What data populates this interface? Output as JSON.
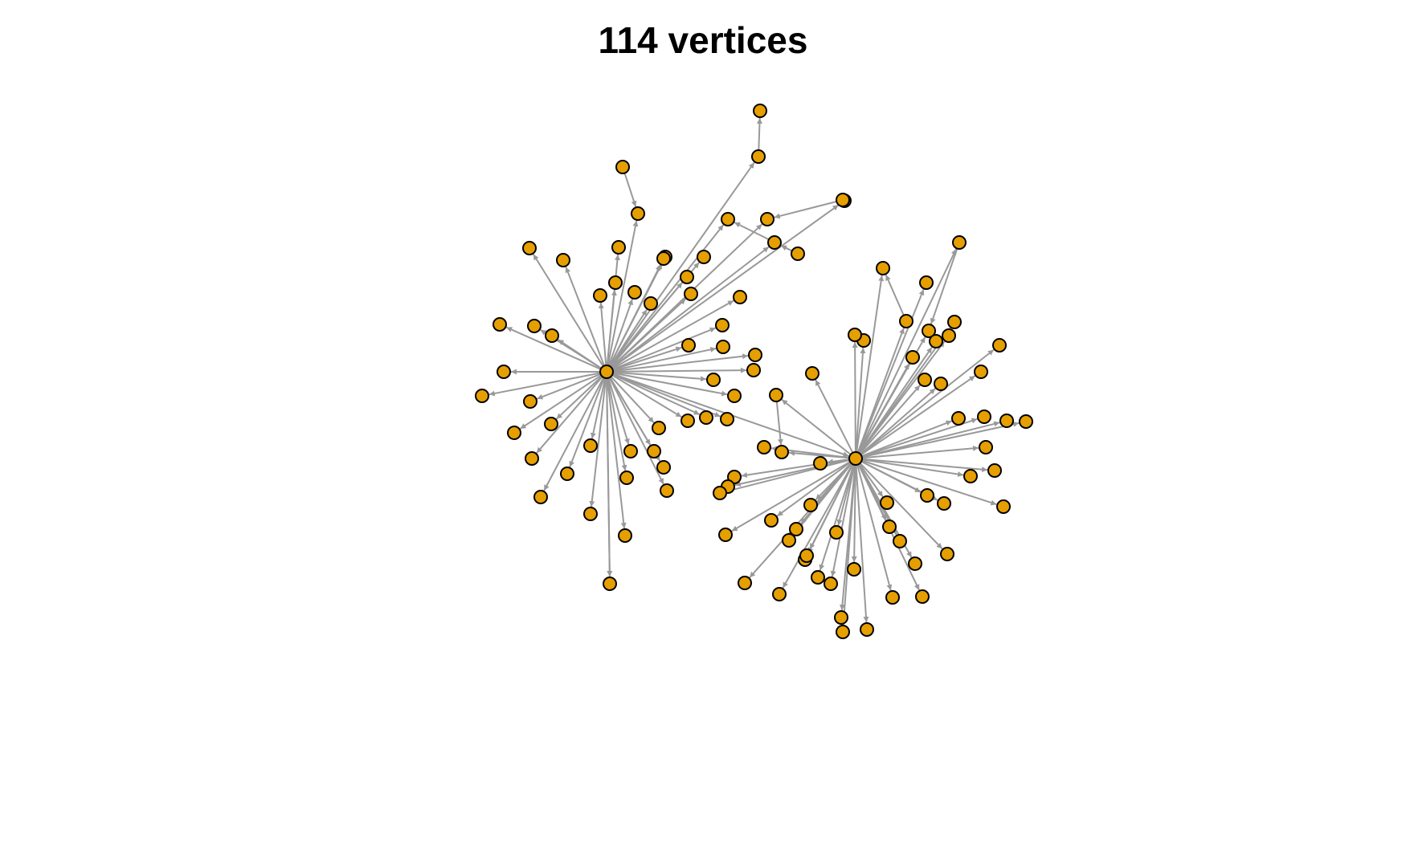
{
  "title": "114 vertices",
  "colors": {
    "node_fill": "#E69F00",
    "node_stroke": "#000000",
    "edge": "#999999",
    "background": "#FFFFFF"
  },
  "graph": {
    "directed": true,
    "vertex_count": 114
  }
}
